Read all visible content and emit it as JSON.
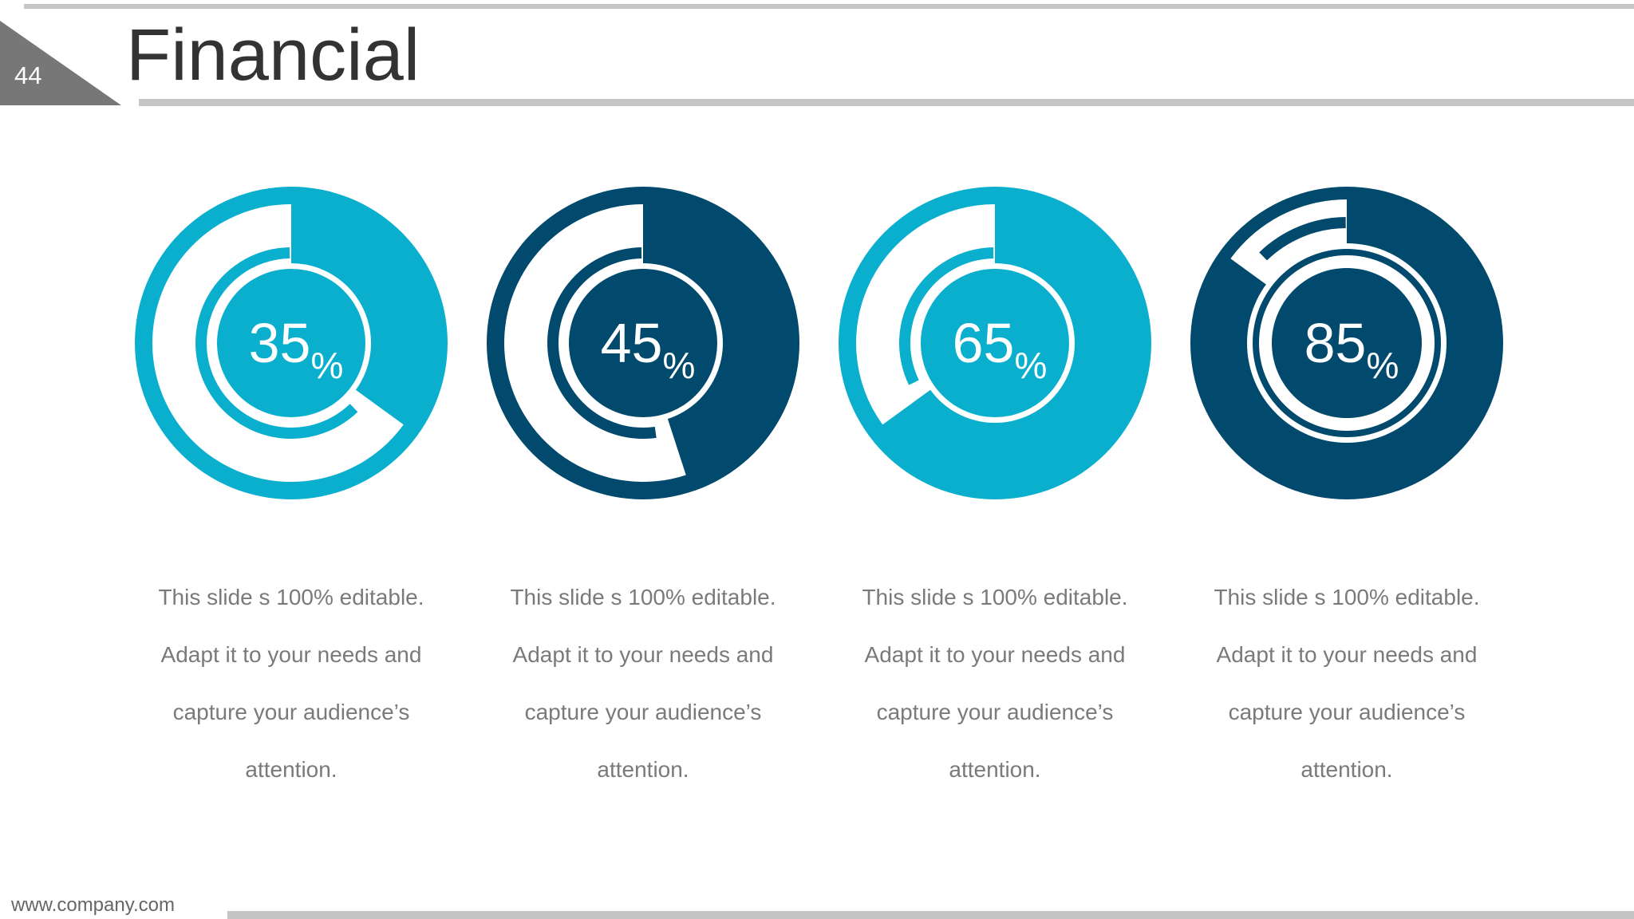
{
  "slide": {
    "page_number": "44",
    "title": "Financial",
    "footer_url": "www.company.com"
  },
  "colors": {
    "light": "#0BAFCE",
    "dark": "#024A6D",
    "rule": "#C5C5C5",
    "tab": "#777777",
    "text": "#7A7A7A"
  },
  "chart_data": {
    "type": "pie",
    "items": [
      {
        "value": 35,
        "label": "35",
        "unit": "%",
        "color": "#0BAFCE",
        "description": [
          "This slide s 100% editable.",
          "Adapt it to your needs and",
          "capture your audience’s",
          "attention."
        ]
      },
      {
        "value": 45,
        "label": "45",
        "unit": "%",
        "color": "#024A6D",
        "description": [
          "This slide s 100% editable.",
          "Adapt it to your needs and",
          "capture your audience’s",
          "attention."
        ]
      },
      {
        "value": 65,
        "label": "65",
        "unit": "%",
        "color": "#0BAFCE",
        "description": [
          "This slide s 100% editable.",
          "Adapt it to your needs and",
          "capture your audience’s",
          "attention."
        ]
      },
      {
        "value": 85,
        "label": "85",
        "unit": "%",
        "color": "#024A6D",
        "description": [
          "This slide s 100% editable.",
          "Adapt it to your needs and",
          "capture your audience’s",
          "attention."
        ]
      }
    ]
  }
}
